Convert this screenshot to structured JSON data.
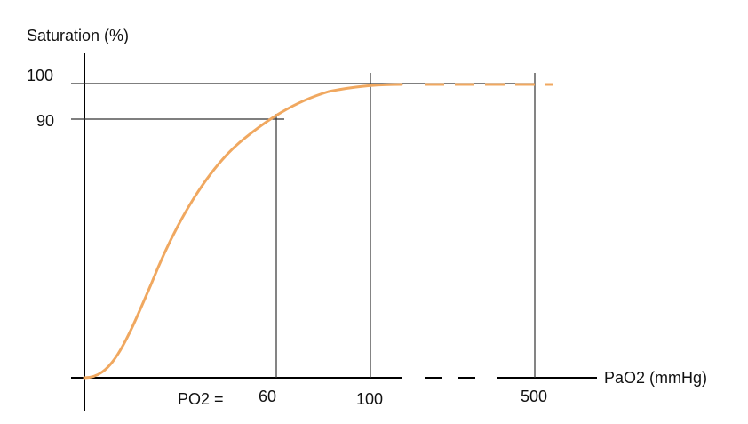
{
  "chart_data": {
    "type": "line",
    "ylabel": "Saturation (%)",
    "xlabel": "PaO2 (mmHg)",
    "x_prefix": "PO2 =",
    "y_ticks": [
      {
        "value": 100,
        "label": "100"
      },
      {
        "value": 90,
        "label": "90"
      }
    ],
    "x_ticks": [
      {
        "value": 60,
        "label": "60"
      },
      {
        "value": 100,
        "label": "100"
      },
      {
        "value": 500,
        "label": "500"
      }
    ],
    "axis_break": true,
    "series": [
      {
        "color": "#f0a860",
        "points": [
          [
            0,
            0
          ],
          [
            10,
            5
          ],
          [
            20,
            20
          ],
          [
            30,
            50
          ],
          [
            40,
            72
          ],
          [
            50,
            84
          ],
          [
            60,
            90
          ],
          [
            80,
            96
          ],
          [
            100,
            98
          ],
          [
            120,
            100
          ],
          [
            500,
            100
          ],
          [
            520,
            100
          ]
        ]
      }
    ],
    "reference_lines": [
      {
        "x": 60,
        "y": 90
      },
      {
        "x": 100,
        "y": 100
      },
      {
        "x": 500,
        "y": 100
      }
    ]
  }
}
